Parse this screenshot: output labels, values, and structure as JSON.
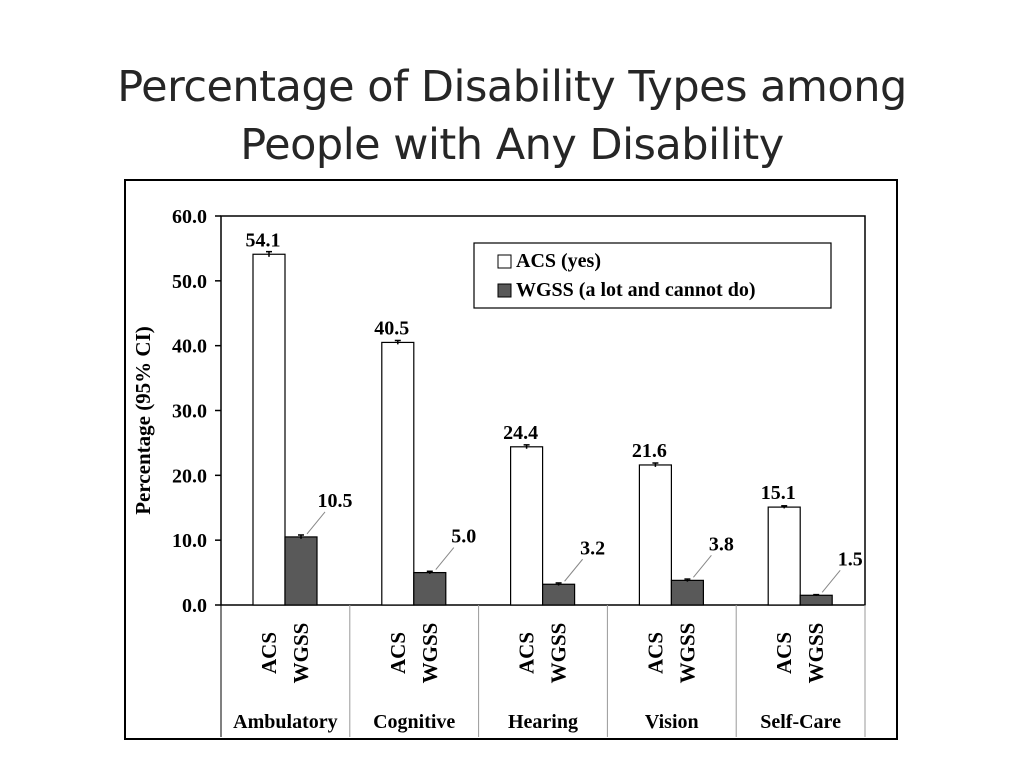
{
  "slide": {
    "title_line1": "Percentage of Disability Types among",
    "title_line2": "People with Any Disability"
  },
  "chart_data": {
    "type": "bar",
    "categories": [
      "Ambulatory",
      "Cognitive",
      "Hearing",
      "Vision",
      "Self-Care"
    ],
    "series": [
      {
        "name": "ACS (yes)",
        "short": "ACS",
        "values": [
          54.1,
          40.5,
          24.4,
          21.6,
          15.1
        ],
        "labels": [
          "54.1",
          "40.5",
          "24.4",
          "21.6",
          "15.1"
        ],
        "color": "#ffffff",
        "ci": [
          0.4,
          0.3,
          0.3,
          0.3,
          0.2
        ]
      },
      {
        "name": "WGSS (a lot and cannot do)",
        "short": "WGSS",
        "values": [
          10.5,
          5.0,
          3.2,
          3.8,
          1.5
        ],
        "labels": [
          "10.5",
          "5.0",
          "3.2",
          "3.8",
          "1.5"
        ],
        "color": "#595959",
        "ci": [
          0.3,
          0.2,
          0.2,
          0.2,
          0.1
        ]
      }
    ],
    "ylabel": "Percentage (95% CI)",
    "ylim": [
      0,
      60
    ],
    "yticks": [
      "0.0",
      "10.0",
      "20.0",
      "30.0",
      "40.0",
      "50.0",
      "60.0"
    ],
    "legend_position": "top-right",
    "grid": false
  }
}
